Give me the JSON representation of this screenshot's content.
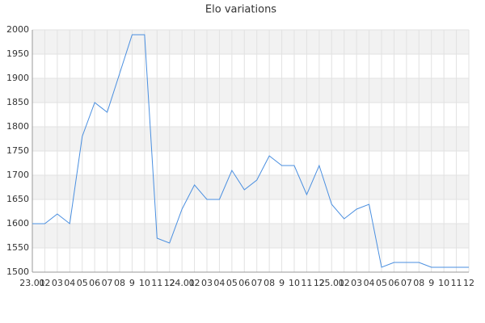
{
  "chart_data": {
    "type": "line",
    "title": "Elo variations",
    "categories": [
      "23.01",
      "02",
      "03",
      "04",
      "05",
      "06",
      "07",
      "08",
      "9",
      "10",
      "11",
      "12",
      "24.01",
      "02",
      "03",
      "04",
      "05",
      "06",
      "07",
      "08",
      "9",
      "10",
      "11",
      "12",
      "25.01",
      "02",
      "03",
      "04",
      "05",
      "06",
      "07",
      "08",
      "9",
      "10",
      "11",
      "12"
    ],
    "series": [
      {
        "color": "#4a8fe0",
        "values": [
          1600,
          1600,
          1620,
          1600,
          1780,
          1850,
          1830,
          1910,
          1990,
          1990,
          1570,
          1560,
          1630,
          1680,
          1650,
          1650,
          1710,
          1670,
          1690,
          1740,
          1720,
          1720,
          1660,
          1720,
          1640,
          1610,
          1630,
          1640,
          1510,
          1520,
          1520,
          1520,
          1510,
          1510,
          1510,
          1510
        ]
      }
    ],
    "ylim": [
      1500,
      2000
    ],
    "yticks": [
      1500,
      1550,
      1600,
      1650,
      1700,
      1750,
      1800,
      1850,
      1900,
      1950,
      2000
    ],
    "grid": true
  }
}
